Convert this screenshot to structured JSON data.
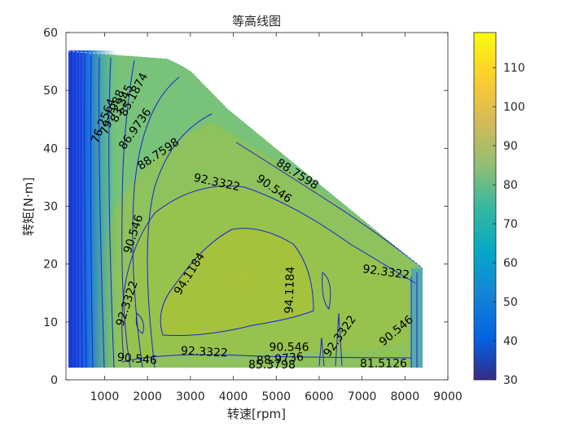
{
  "chart_data": {
    "type": "contour",
    "title": "等高线图",
    "xlabel": "转速[rpm]",
    "ylabel": "转矩[N·m]",
    "xlim": [
      100,
      9000
    ],
    "ylim": [
      0,
      60
    ],
    "xticks": [
      1000,
      2000,
      3000,
      4000,
      5000,
      6000,
      7000,
      8000,
      9000
    ],
    "yticks": [
      0,
      10,
      20,
      30,
      40,
      50,
      60
    ],
    "colorbar": {
      "colormap": "parula",
      "range": [
        30,
        119
      ],
      "ticks": [
        30,
        40,
        50,
        60,
        70,
        80,
        90,
        100,
        110
      ]
    },
    "contour_labels": [
      {
        "text": "76.2564",
        "x": 1050,
        "y": 44.5,
        "angle": -68
      },
      {
        "text": "79.7988",
        "x": 1260,
        "y": 46.0,
        "angle": -68
      },
      {
        "text": "83.345",
        "x": 1480,
        "y": 47.5,
        "angle": -66
      },
      {
        "text": "85.1874",
        "x": 1750,
        "y": 49.0,
        "angle": -62
      },
      {
        "text": "86.9736",
        "x": 1780,
        "y": 43.0,
        "angle": -55
      },
      {
        "text": "88.7598",
        "x": 2300,
        "y": 38.5,
        "angle": -34
      },
      {
        "text": "92.3322",
        "x": 3600,
        "y": 33.5,
        "angle": 12
      },
      {
        "text": "90.546",
        "x": 4900,
        "y": 32.5,
        "angle": 35
      },
      {
        "text": "88.7598",
        "x": 5450,
        "y": 35.0,
        "angle": 32
      },
      {
        "text": "90.546",
        "x": 1750,
        "y": 25.0,
        "angle": -72
      },
      {
        "text": "92.3322",
        "x": 7550,
        "y": 18.0,
        "angle": 8
      },
      {
        "text": "94.1184",
        "x": 3050,
        "y": 18.0,
        "angle": -58
      },
      {
        "text": "94.1184",
        "x": 5400,
        "y": 15.5,
        "angle": -88
      },
      {
        "text": "92.3322",
        "x": 1600,
        "y": 13.0,
        "angle": -72
      },
      {
        "text": "90.546",
        "x": 1750,
        "y": 3.0,
        "angle": 5
      },
      {
        "text": "92.3322",
        "x": 3320,
        "y": 4.2,
        "angle": 3
      },
      {
        "text": "92.3322",
        "x": 6550,
        "y": 7.2,
        "angle": -55
      },
      {
        "text": "90.546",
        "x": 5300,
        "y": 5.0,
        "angle": 0
      },
      {
        "text": "88.9736",
        "x": 5100,
        "y": 3.0,
        "angle": -5
      },
      {
        "text": "85.3798",
        "x": 4900,
        "y": 2.0,
        "angle": 0
      },
      {
        "text": "90.546",
        "x": 7850,
        "y": 8.0,
        "angle": -40
      },
      {
        "text": "81.5126",
        "x": 7500,
        "y": 2.2,
        "angle": 0
      }
    ]
  }
}
